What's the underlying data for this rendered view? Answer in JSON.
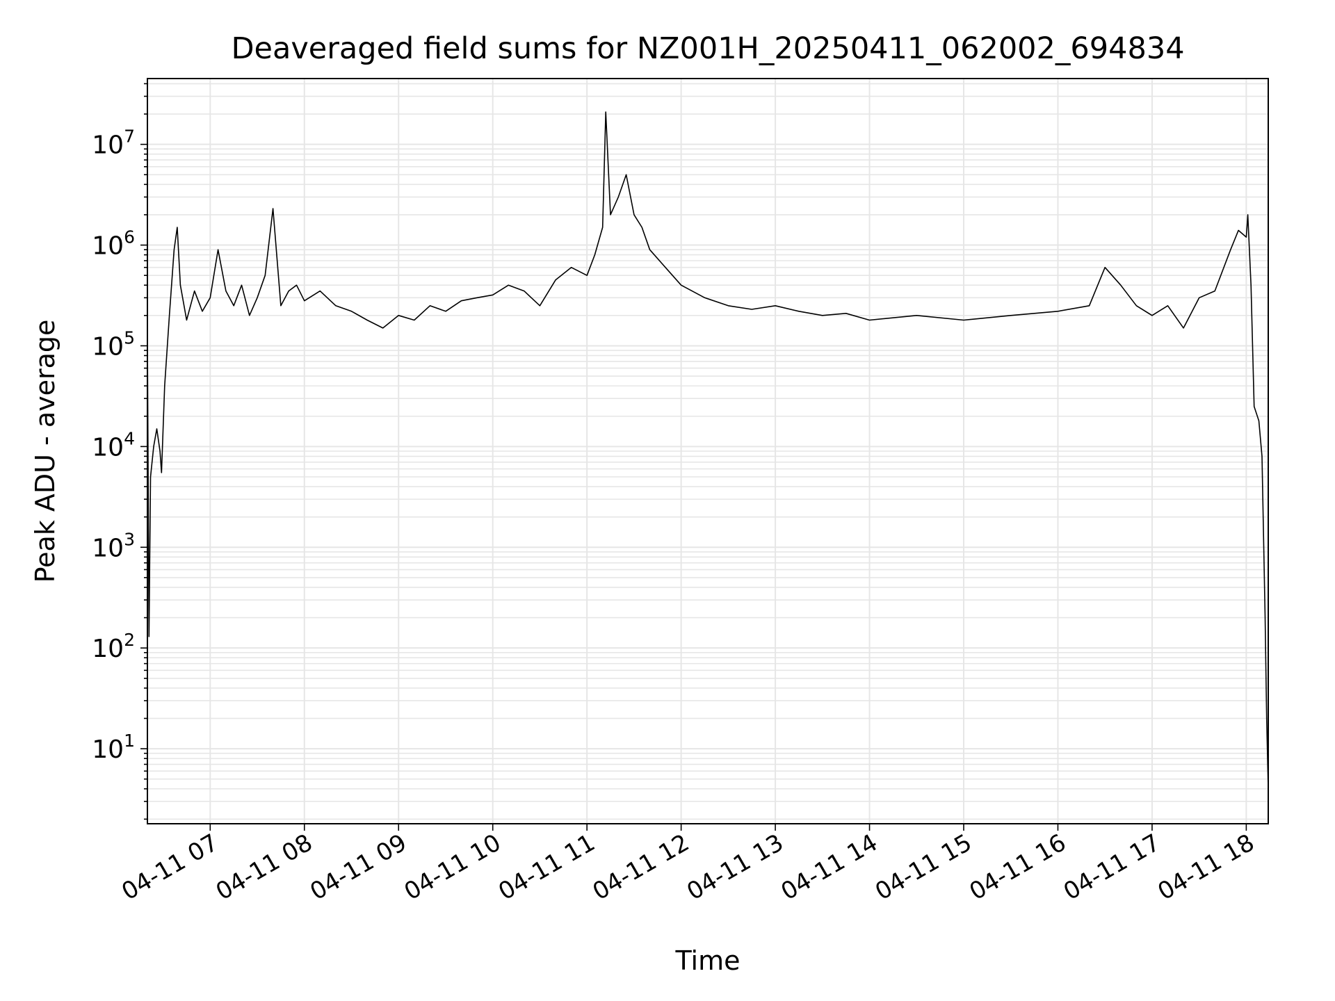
{
  "chart_data": {
    "type": "line",
    "title": "Deaveraged field sums for NZ001H_20250411_062002_694834",
    "xlabel": "Time",
    "ylabel": "Peak ADU - average",
    "xlim": [
      "2025-04-11 06:20",
      "2025-04-11 18:14"
    ],
    "ylim": [
      1.8,
      45000000
    ],
    "yscale": "log",
    "grid": true,
    "x_ticks": [
      {
        "t": "2025-04-11 07:00",
        "label": "04-11 07"
      },
      {
        "t": "2025-04-11 08:00",
        "label": "04-11 08"
      },
      {
        "t": "2025-04-11 09:00",
        "label": "04-11 09"
      },
      {
        "t": "2025-04-11 10:00",
        "label": "04-11 10"
      },
      {
        "t": "2025-04-11 11:00",
        "label": "04-11 11"
      },
      {
        "t": "2025-04-11 12:00",
        "label": "04-11 12"
      },
      {
        "t": "2025-04-11 13:00",
        "label": "04-11 13"
      },
      {
        "t": "2025-04-11 14:00",
        "label": "04-11 14"
      },
      {
        "t": "2025-04-11 15:00",
        "label": "04-11 15"
      },
      {
        "t": "2025-04-11 16:00",
        "label": "04-11 16"
      },
      {
        "t": "2025-04-11 17:00",
        "label": "04-11 17"
      },
      {
        "t": "2025-04-11 18:00",
        "label": "04-11 18"
      }
    ],
    "y_ticks": [
      {
        "value": 10,
        "base": "10",
        "exp": "1"
      },
      {
        "value": 100,
        "base": "10",
        "exp": "2"
      },
      {
        "value": 1000,
        "base": "10",
        "exp": "3"
      },
      {
        "value": 10000,
        "base": "10",
        "exp": "4"
      },
      {
        "value": 100000,
        "base": "10",
        "exp": "5"
      },
      {
        "value": 1000000,
        "base": "10",
        "exp": "6"
      },
      {
        "value": 10000000,
        "base": "10",
        "exp": "7"
      }
    ],
    "series": [
      {
        "color": "#000000",
        "points": [
          [
            "2025-04-11 06:20",
            130000
          ],
          [
            "2025-04-11 06:21",
            130
          ],
          [
            "2025-04-11 06:22",
            5000
          ],
          [
            "2025-04-11 06:24",
            10000
          ],
          [
            "2025-04-11 06:26",
            15000
          ],
          [
            "2025-04-11 06:28",
            9000
          ],
          [
            "2025-04-11 06:29",
            5500
          ],
          [
            "2025-04-11 06:31",
            40000
          ],
          [
            "2025-04-11 06:34",
            200000
          ],
          [
            "2025-04-11 06:37",
            900000
          ],
          [
            "2025-04-11 06:39",
            1500000
          ],
          [
            "2025-04-11 06:41",
            400000
          ],
          [
            "2025-04-11 06:45",
            180000
          ],
          [
            "2025-04-11 06:50",
            350000
          ],
          [
            "2025-04-11 06:55",
            220000
          ],
          [
            "2025-04-11 07:00",
            300000
          ],
          [
            "2025-04-11 07:05",
            900000
          ],
          [
            "2025-04-11 07:10",
            350000
          ],
          [
            "2025-04-11 07:15",
            250000
          ],
          [
            "2025-04-11 07:20",
            400000
          ],
          [
            "2025-04-11 07:25",
            200000
          ],
          [
            "2025-04-11 07:30",
            300000
          ],
          [
            "2025-04-11 07:35",
            500000
          ],
          [
            "2025-04-11 07:40",
            2300000
          ],
          [
            "2025-04-11 07:45",
            250000
          ],
          [
            "2025-04-11 07:50",
            350000
          ],
          [
            "2025-04-11 07:55",
            400000
          ],
          [
            "2025-04-11 08:00",
            280000
          ],
          [
            "2025-04-11 08:10",
            350000
          ],
          [
            "2025-04-11 08:20",
            250000
          ],
          [
            "2025-04-11 08:30",
            220000
          ],
          [
            "2025-04-11 08:40",
            180000
          ],
          [
            "2025-04-11 08:50",
            150000
          ],
          [
            "2025-04-11 09:00",
            200000
          ],
          [
            "2025-04-11 09:10",
            180000
          ],
          [
            "2025-04-11 09:20",
            250000
          ],
          [
            "2025-04-11 09:30",
            220000
          ],
          [
            "2025-04-11 09:40",
            280000
          ],
          [
            "2025-04-11 09:50",
            300000
          ],
          [
            "2025-04-11 10:00",
            320000
          ],
          [
            "2025-04-11 10:10",
            400000
          ],
          [
            "2025-04-11 10:20",
            350000
          ],
          [
            "2025-04-11 10:30",
            250000
          ],
          [
            "2025-04-11 10:40",
            450000
          ],
          [
            "2025-04-11 10:50",
            600000
          ],
          [
            "2025-04-11 11:00",
            500000
          ],
          [
            "2025-04-11 11:05",
            800000
          ],
          [
            "2025-04-11 11:10",
            1500000
          ],
          [
            "2025-04-11 11:12",
            21000000
          ],
          [
            "2025-04-11 11:15",
            2000000
          ],
          [
            "2025-04-11 11:20",
            3000000
          ],
          [
            "2025-04-11 11:25",
            5000000
          ],
          [
            "2025-04-11 11:30",
            2000000
          ],
          [
            "2025-04-11 11:35",
            1500000
          ],
          [
            "2025-04-11 11:40",
            900000
          ],
          [
            "2025-04-11 11:50",
            600000
          ],
          [
            "2025-04-11 12:00",
            400000
          ],
          [
            "2025-04-11 12:15",
            300000
          ],
          [
            "2025-04-11 12:30",
            250000
          ],
          [
            "2025-04-11 12:45",
            230000
          ],
          [
            "2025-04-11 13:00",
            250000
          ],
          [
            "2025-04-11 13:15",
            220000
          ],
          [
            "2025-04-11 13:30",
            200000
          ],
          [
            "2025-04-11 13:45",
            210000
          ],
          [
            "2025-04-11 14:00",
            180000
          ],
          [
            "2025-04-11 14:30",
            200000
          ],
          [
            "2025-04-11 15:00",
            180000
          ],
          [
            "2025-04-11 15:30",
            200000
          ],
          [
            "2025-04-11 16:00",
            220000
          ],
          [
            "2025-04-11 16:20",
            250000
          ],
          [
            "2025-04-11 16:30",
            600000
          ],
          [
            "2025-04-11 16:40",
            400000
          ],
          [
            "2025-04-11 16:50",
            250000
          ],
          [
            "2025-04-11 17:00",
            200000
          ],
          [
            "2025-04-11 17:10",
            250000
          ],
          [
            "2025-04-11 17:20",
            150000
          ],
          [
            "2025-04-11 17:30",
            300000
          ],
          [
            "2025-04-11 17:40",
            350000
          ],
          [
            "2025-04-11 17:50",
            900000
          ],
          [
            "2025-04-11 17:55",
            1400000
          ],
          [
            "2025-04-11 18:00",
            1200000
          ],
          [
            "2025-04-11 18:01",
            2000000
          ],
          [
            "2025-04-11 18:03",
            400000
          ],
          [
            "2025-04-11 18:05",
            25000
          ],
          [
            "2025-04-11 18:08",
            18000
          ],
          [
            "2025-04-11 18:10",
            8000
          ],
          [
            "2025-04-11 18:12",
            200
          ],
          [
            "2025-04-11 18:13",
            20
          ],
          [
            "2025-04-11 18:14",
            4
          ]
        ]
      }
    ]
  }
}
